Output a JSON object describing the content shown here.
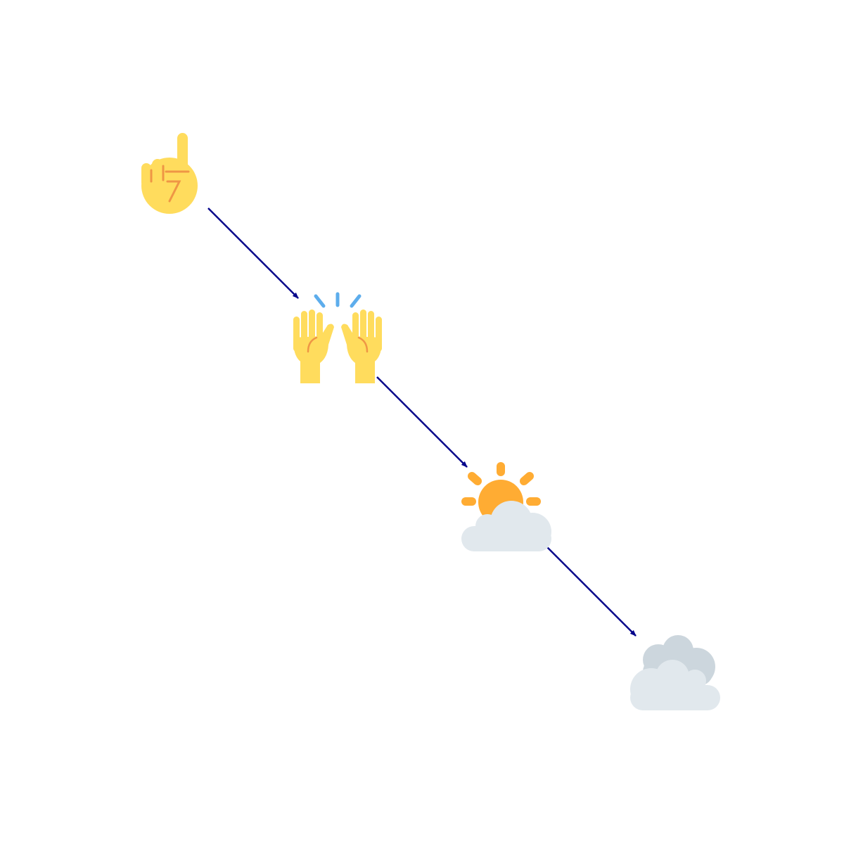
{
  "diagram": {
    "type": "emoji-sequence",
    "colors": {
      "background": "#ffffff",
      "arrow": "#00008b",
      "skin": "#ffdc5d",
      "skin_line": "#ef9645",
      "sparkle": "#5dadec",
      "sun": "#ffac33",
      "cloud_light": "#e1e8ed",
      "cloud_dark": "#ccd6dd"
    },
    "nodes": [
      {
        "id": "index-pointing-up",
        "icon": "index-pointing-up-icon",
        "emoji": "☝️"
      },
      {
        "id": "raising-hands",
        "icon": "raising-hands-icon",
        "emoji": "🙌"
      },
      {
        "id": "sun-behind-cloud",
        "icon": "sun-behind-cloud-icon",
        "emoji": "⛅"
      },
      {
        "id": "cloud",
        "icon": "cloud-icon",
        "emoji": "☁️"
      }
    ],
    "edges": [
      {
        "from": "index-pointing-up",
        "to": "raising-hands"
      },
      {
        "from": "raising-hands",
        "to": "sun-behind-cloud"
      },
      {
        "from": "sun-behind-cloud",
        "to": "cloud"
      }
    ]
  }
}
